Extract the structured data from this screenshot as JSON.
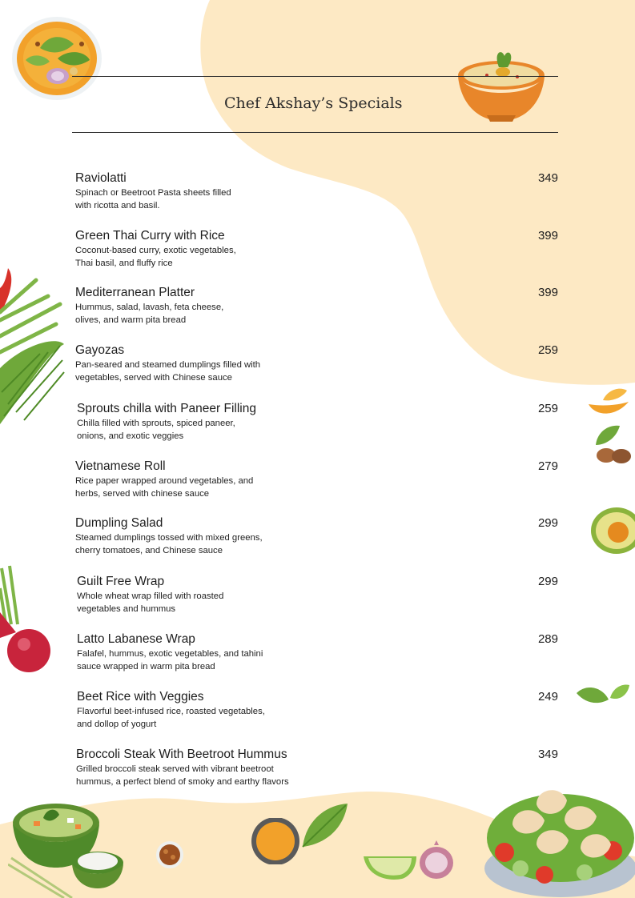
{
  "menu": {
    "title": "Chef Akshay’s Specials",
    "items": [
      {
        "name": "Raviolatti",
        "desc1": "Spinach or Beetroot Pasta sheets filled",
        "desc2": "with  ricotta and basil.",
        "price": "349"
      },
      {
        "name": "Green Thai Curry with Rice",
        "desc1": "Coconut-based curry, exotic vegetables,",
        "desc2": "Thai basil, and fluffy  rice",
        "price": "399"
      },
      {
        "name": "Mediterranean Platter",
        "desc1": "Hummus, salad, lavash, feta cheese,",
        "desc2": "olives, and warm pita bread",
        "price": "399"
      },
      {
        "name": "Gayozas",
        "desc1": "Pan-seared and steamed dumplings filled with",
        "desc2": "vegetables, served with Chinese sauce",
        "price": "259"
      },
      {
        "name": "Sprouts chilla with Paneer Filling",
        "desc1": "Chilla filled with sprouts, spiced paneer,",
        "desc2": "onions, and exotic veggies",
        "price": "259"
      },
      {
        "name": "Vietnamese Roll",
        "desc1": "Rice paper wrapped around vegetables, and",
        "desc2": "herbs, served with chinese sauce",
        "price": "279"
      },
      {
        "name": "Dumpling Salad",
        "desc1": "Steamed dumplings tossed with mixed greens,",
        "desc2": "cherry tomatoes, and Chinese sauce",
        "price": "299"
      },
      {
        "name": "Guilt Free Wrap",
        "desc1": "Whole wheat wrap filled with roasted",
        "desc2": "vegetables and hummus",
        "price": "299"
      },
      {
        "name": "Latto Labanese Wrap",
        "desc1": "Falafel, hummus, exotic vegetables, and tahini",
        "desc2": "sauce wrapped in warm pita bread",
        "price": "289"
      },
      {
        "name": "Beet Rice with Veggies",
        "desc1": "Flavorful beet-infused rice, roasted vegetables,",
        "desc2": "and dollop of yogurt",
        "price": "249"
      },
      {
        "name": "Broccoli Steak With Beetroot Hummus",
        "desc1": "Grilled broccoli steak served with vibrant beetroot",
        "desc2": "hummus, a perfect blend of smoky and earthy flavors",
        "price": "349"
      }
    ]
  },
  "colors": {
    "blob": "#fde9c4",
    "rule": "#2c2c2c",
    "text": "#1d1d1d",
    "curry": "#f2a12a",
    "leaf": "#6fa83a",
    "beet": "#c8243c",
    "bowl_orange": "#e8862a"
  },
  "decorations": [
    "curry-bowl-icon",
    "hummus-bowl-icon",
    "chili-icon",
    "palm-leaf-icon",
    "orange-slices-icon",
    "basil-leaf-icon",
    "almonds-icon",
    "avocado-icon",
    "beetroot-icon",
    "leaves-icon",
    "green-curry-bowl-icon",
    "rice-bowl-icon",
    "spice-bowl-icon",
    "turmeric-bowl-icon",
    "lime-icon",
    "onion-icon",
    "leaf-icon",
    "dumpling-salad-icon"
  ]
}
